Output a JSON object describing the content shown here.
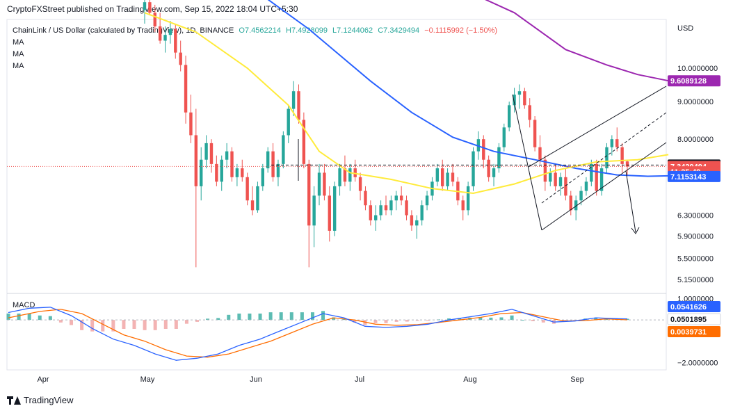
{
  "header": {
    "published": "CryptoFXStreet published on TradingView.com, Sep 15, 2022 18:04 UTC+5:30"
  },
  "legend": {
    "symbol": "ChainLink / US Dollar (calculated by TradingView), 1D, BINANCE",
    "ohlc": [
      "O7.4562214",
      "H7.4928099",
      "L7.1244062",
      "C7.3429494"
    ],
    "change": "−0.1115992 (−1.50%)",
    "ma_labels": [
      "MA",
      "MA",
      "MA"
    ]
  },
  "macd_label": "MACD",
  "footer": {
    "brand": "TradingView"
  },
  "colors": {
    "up": "#26a69a",
    "down": "#ef5350",
    "ma_fast": "#ffeb3b",
    "ma_mid": "#2962ff",
    "ma_slow": "#9c27b0",
    "macd": "#2962ff",
    "signal": "#ff6d00"
  },
  "chart_data": {
    "type": "candlestick",
    "price_axis": {
      "unit": "USD",
      "scale": "log",
      "ticks": [
        "10.0000000",
        "9.0000000",
        "8.0000000",
        "6.3000000",
        "5.9000000",
        "5.5000000",
        "5.1500000"
      ],
      "ylim": [
        4.95,
        11.6
      ]
    },
    "time_axis": {
      "labels": [
        "Apr",
        "May",
        "Jun",
        "Jul",
        "Aug",
        "Sep"
      ]
    },
    "price_labels": [
      {
        "text": "9.6089128",
        "value": 9.6089128,
        "color": "#9c27b0"
      },
      {
        "text": "7.3760145",
        "value": 7.3760145,
        "color": "#131722"
      },
      {
        "text": "7.3429494",
        "value": 7.3429494,
        "color": "#ef5350"
      },
      {
        "text": "11:25:49",
        "value": 7.22,
        "color": "#ef5350"
      },
      {
        "text": "7.1153143",
        "value": 7.1153143,
        "color": "#2962ff"
      }
    ],
    "macd_axis": {
      "ticks": [
        "1.0000000",
        "−2.0000000"
      ],
      "ylim": [
        -2.35,
        1.15
      ],
      "labels": [
        {
          "text": "0.0541626",
          "value": 0.0541626,
          "color": "#2962ff"
        },
        {
          "text": "0.0501895",
          "value": 0.0501895,
          "color": "#ffffff"
        },
        {
          "text": "0.0039731",
          "value": 0.0039731,
          "color": "#ff6d00"
        }
      ]
    },
    "candles": [
      [
        12.0,
        12.6,
        11.5,
        12.3
      ],
      [
        12.3,
        12.6,
        11.8,
        11.9
      ],
      [
        11.9,
        12.2,
        11.2,
        11.4
      ],
      [
        11.4,
        11.9,
        10.8,
        10.9
      ],
      [
        10.9,
        11.4,
        10.5,
        11.1
      ],
      [
        11.1,
        11.6,
        10.8,
        11.3
      ],
      [
        11.3,
        11.5,
        10.3,
        10.5
      ],
      [
        10.5,
        10.9,
        9.9,
        10.1
      ],
      [
        10.1,
        10.4,
        8.4,
        8.7
      ],
      [
        8.7,
        9.2,
        7.9,
        8.1
      ],
      [
        8.1,
        8.8,
        5.35,
        6.9
      ],
      [
        6.9,
        7.8,
        6.6,
        7.5
      ],
      [
        7.5,
        8.1,
        7.3,
        7.9
      ],
      [
        7.9,
        8.0,
        7.2,
        7.4
      ],
      [
        7.4,
        7.6,
        6.9,
        7.0
      ],
      [
        7.0,
        7.6,
        6.8,
        7.5
      ],
      [
        7.5,
        7.9,
        7.3,
        7.7
      ],
      [
        7.7,
        7.8,
        7.0,
        7.1
      ],
      [
        7.1,
        7.4,
        6.9,
        7.3
      ],
      [
        7.3,
        7.5,
        7.0,
        7.1
      ],
      [
        7.1,
        7.2,
        6.5,
        6.6
      ],
      [
        6.6,
        6.9,
        6.3,
        6.4
      ],
      [
        6.4,
        7.0,
        6.35,
        6.9
      ],
      [
        6.9,
        7.4,
        6.8,
        7.3
      ],
      [
        7.3,
        7.8,
        7.2,
        7.7
      ],
      [
        7.7,
        7.9,
        7.0,
        7.1
      ],
      [
        7.1,
        7.5,
        6.9,
        7.4
      ],
      [
        7.4,
        8.2,
        7.3,
        8.1
      ],
      [
        8.1,
        8.9,
        7.9,
        8.8
      ],
      [
        8.8,
        9.6,
        8.6,
        9.3
      ],
      [
        9.3,
        9.5,
        8.4,
        8.5
      ],
      [
        8.5,
        8.7,
        7.3,
        7.4
      ],
      [
        7.4,
        7.5,
        5.35,
        6.1
      ],
      [
        6.1,
        6.9,
        5.7,
        6.7
      ],
      [
        6.7,
        7.4,
        6.5,
        7.2
      ],
      [
        7.2,
        7.4,
        6.6,
        6.7
      ],
      [
        6.7,
        6.9,
        5.8,
        6.0
      ],
      [
        6.0,
        7.0,
        5.9,
        6.9
      ],
      [
        6.9,
        7.4,
        6.7,
        7.3
      ],
      [
        7.3,
        7.6,
        6.9,
        7.0
      ],
      [
        7.0,
        7.4,
        6.8,
        7.3
      ],
      [
        7.3,
        7.5,
        7.0,
        7.1
      ],
      [
        7.1,
        7.2,
        6.6,
        6.8
      ],
      [
        6.8,
        6.9,
        6.4,
        6.5
      ],
      [
        6.5,
        6.6,
        6.1,
        6.2
      ],
      [
        6.2,
        6.5,
        6.0,
        6.3
      ],
      [
        6.3,
        6.6,
        6.2,
        6.5
      ],
      [
        6.5,
        6.7,
        6.3,
        6.4
      ],
      [
        6.4,
        6.7,
        6.3,
        6.6
      ],
      [
        6.6,
        6.8,
        6.4,
        6.7
      ],
      [
        6.7,
        6.9,
        6.5,
        6.6
      ],
      [
        6.6,
        6.7,
        6.2,
        6.3
      ],
      [
        6.3,
        6.4,
        6.0,
        6.1
      ],
      [
        6.1,
        6.3,
        5.85,
        6.2
      ],
      [
        6.2,
        6.6,
        6.1,
        6.5
      ],
      [
        6.5,
        6.8,
        6.4,
        6.7
      ],
      [
        6.7,
        7.1,
        6.6,
        7.0
      ],
      [
        7.0,
        7.4,
        6.9,
        7.3
      ],
      [
        7.3,
        7.5,
        6.8,
        6.9
      ],
      [
        6.9,
        7.3,
        6.8,
        7.2
      ],
      [
        7.2,
        7.4,
        6.9,
        7.0
      ],
      [
        7.0,
        7.1,
        6.5,
        6.6
      ],
      [
        6.6,
        6.7,
        6.2,
        6.4
      ],
      [
        6.4,
        7.0,
        6.3,
        6.9
      ],
      [
        6.9,
        7.8,
        6.8,
        7.7
      ],
      [
        7.7,
        8.2,
        7.5,
        8.0
      ],
      [
        8.0,
        8.1,
        7.3,
        7.5
      ],
      [
        7.5,
        7.6,
        7.0,
        7.1
      ],
      [
        7.1,
        7.4,
        6.9,
        7.3
      ],
      [
        7.3,
        7.9,
        7.2,
        7.8
      ],
      [
        7.8,
        8.4,
        7.7,
        8.3
      ],
      [
        8.3,
        9.0,
        8.2,
        8.9
      ],
      [
        8.9,
        9.4,
        8.7,
        9.2
      ],
      [
        9.2,
        9.5,
        8.8,
        9.3
      ],
      [
        9.3,
        9.4,
        8.8,
        8.9
      ],
      [
        8.9,
        9.1,
        8.3,
        8.5
      ],
      [
        8.5,
        8.6,
        7.7,
        7.8
      ],
      [
        7.8,
        8.1,
        7.4,
        7.5
      ],
      [
        7.5,
        7.6,
        6.8,
        7.0
      ],
      [
        7.0,
        7.3,
        6.9,
        7.2
      ],
      [
        7.2,
        7.4,
        6.8,
        6.9
      ],
      [
        6.9,
        7.2,
        6.7,
        7.1
      ],
      [
        7.1,
        7.3,
        6.6,
        6.7
      ],
      [
        6.7,
        6.8,
        6.3,
        6.4
      ],
      [
        6.4,
        6.7,
        6.2,
        6.6
      ],
      [
        6.6,
        6.9,
        6.5,
        6.8
      ],
      [
        6.8,
        7.1,
        6.7,
        7.0
      ],
      [
        7.0,
        7.5,
        6.9,
        7.4
      ],
      [
        7.4,
        7.5,
        6.7,
        6.8
      ],
      [
        6.8,
        7.4,
        6.7,
        7.3
      ],
      [
        7.3,
        7.9,
        7.2,
        7.8
      ],
      [
        7.8,
        8.1,
        7.6,
        8.0
      ],
      [
        8.0,
        8.3,
        7.7,
        7.8
      ],
      [
        7.8,
        7.9,
        7.2,
        7.4
      ],
      [
        7.46,
        7.49,
        7.12,
        7.34
      ]
    ],
    "ma_fast": [
      [
        0,
        11.9
      ],
      [
        10,
        11.2
      ],
      [
        20,
        10.0
      ],
      [
        28,
        8.9
      ],
      [
        34,
        7.7
      ],
      [
        40,
        7.2
      ],
      [
        48,
        7.05
      ],
      [
        56,
        6.85
      ],
      [
        64,
        6.75
      ],
      [
        72,
        6.95
      ],
      [
        80,
        7.25
      ],
      [
        88,
        7.45
      ],
      [
        96,
        7.5
      ],
      [
        102,
        7.62
      ]
    ],
    "ma_mid": [
      [
        0,
        14.0
      ],
      [
        20,
        13.0
      ],
      [
        32,
        11.3
      ],
      [
        44,
        9.6
      ],
      [
        52,
        8.7
      ],
      [
        60,
        8.05
      ],
      [
        68,
        7.7
      ],
      [
        76,
        7.5
      ],
      [
        84,
        7.3
      ],
      [
        92,
        7.15
      ],
      [
        98,
        7.12
      ],
      [
        102,
        7.13
      ]
    ],
    "ma_slow": [
      [
        48,
        14.0
      ],
      [
        60,
        13.0
      ],
      [
        72,
        11.9
      ],
      [
        82,
        10.6
      ],
      [
        90,
        10.1
      ],
      [
        96,
        9.8
      ],
      [
        102,
        9.61
      ]
    ],
    "macd_line": [
      [
        0,
        0.35
      ],
      [
        4,
        0.55
      ],
      [
        8,
        0.6
      ],
      [
        12,
        0.2
      ],
      [
        16,
        -0.4
      ],
      [
        20,
        -0.9
      ],
      [
        24,
        -1.2
      ],
      [
        28,
        -1.6
      ],
      [
        32,
        -1.9
      ],
      [
        36,
        -1.8
      ],
      [
        40,
        -1.6
      ],
      [
        44,
        -1.2
      ],
      [
        48,
        -0.9
      ],
      [
        52,
        -0.5
      ],
      [
        56,
        -0.1
      ],
      [
        60,
        0.3
      ],
      [
        64,
        0.1
      ],
      [
        68,
        -0.3
      ],
      [
        72,
        -0.35
      ],
      [
        76,
        -0.3
      ],
      [
        80,
        -0.2
      ],
      [
        84,
        0.0
      ],
      [
        88,
        0.15
      ],
      [
        92,
        0.3
      ],
      [
        96,
        0.5
      ],
      [
        100,
        0.2
      ],
      [
        104,
        -0.1
      ],
      [
        108,
        -0.05
      ],
      [
        112,
        0.1
      ],
      [
        116,
        0.06
      ],
      [
        118,
        0.05
      ]
    ],
    "signal_line": [
      [
        0,
        0.1
      ],
      [
        6,
        0.4
      ],
      [
        10,
        0.5
      ],
      [
        14,
        0.3
      ],
      [
        18,
        -0.2
      ],
      [
        22,
        -0.7
      ],
      [
        26,
        -1.0
      ],
      [
        30,
        -1.4
      ],
      [
        34,
        -1.7
      ],
      [
        38,
        -1.75
      ],
      [
        42,
        -1.6
      ],
      [
        46,
        -1.3
      ],
      [
        50,
        -1.0
      ],
      [
        54,
        -0.6
      ],
      [
        58,
        -0.2
      ],
      [
        62,
        0.1
      ],
      [
        66,
        0.0
      ],
      [
        70,
        -0.2
      ],
      [
        74,
        -0.25
      ],
      [
        78,
        -0.22
      ],
      [
        82,
        -0.12
      ],
      [
        86,
        0.0
      ],
      [
        90,
        0.12
      ],
      [
        94,
        0.3
      ],
      [
        98,
        0.35
      ],
      [
        102,
        0.15
      ],
      [
        106,
        -0.05
      ],
      [
        110,
        -0.03
      ],
      [
        114,
        0.05
      ],
      [
        118,
        0.004
      ]
    ]
  }
}
